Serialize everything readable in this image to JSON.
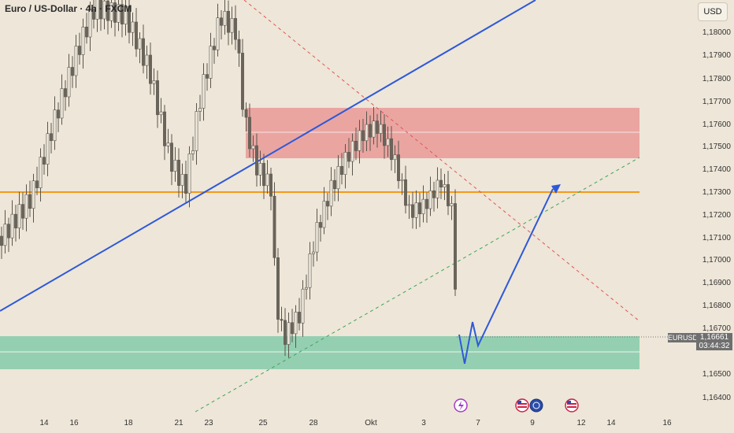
{
  "header": {
    "title": "Euro / US-Dollar · 4h · FXCM",
    "currency": "USD"
  },
  "price_axis": {
    "ticks": [
      "1,18000",
      "1,17900",
      "1,17800",
      "1,17700",
      "1,17600",
      "1,17500",
      "1,17400",
      "1,17300",
      "1,17200",
      "1,17100",
      "1,17000",
      "1,16900",
      "1,16800",
      "1,16700",
      "1,16500",
      "1,16400"
    ]
  },
  "time_axis": {
    "ticks": [
      "14",
      "16",
      "18",
      "21",
      "23",
      "25",
      "28",
      "Okt",
      "3",
      "7",
      "9",
      "12",
      "14",
      "16"
    ]
  },
  "last_price": {
    "symbol": "EURUSD",
    "price": "1,16661",
    "countdown": "03:44:32"
  },
  "colors": {
    "background": "#eee6d8",
    "supply_zone": "#e88f8f",
    "demand_zone": "#7ec9a9",
    "level_line": "#f39a1b",
    "trend_line": "#2d59d9",
    "projection": "#2d59d9",
    "bear_candle": "#6a645b",
    "bull_candle": "#f0ebe0"
  },
  "events": [
    {
      "icon": "lightning-icon"
    },
    {
      "icon": "us-flag-icon"
    },
    {
      "icon": "globe-icon"
    },
    {
      "icon": "us-flag-icon"
    }
  ]
}
